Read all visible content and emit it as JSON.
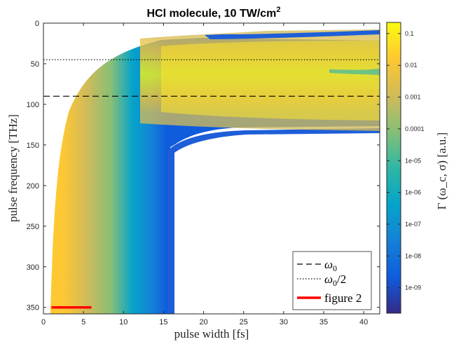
{
  "chart_data": {
    "type": "heatmap",
    "title_main": "HCl molecule, 10 TW/cm",
    "title_sup": "2",
    "xlabel": "pulse width [fs]",
    "ylabel": "pulse frequency [THz]",
    "colorbar_label": "Γ (ω_c, σ) [a.u.]",
    "xlim": [
      0,
      42
    ],
    "ylim": [
      0,
      358
    ],
    "y_reversed": true,
    "x_ticks": [
      0,
      5,
      10,
      15,
      20,
      25,
      30,
      35,
      40
    ],
    "x_tick_labels": [
      "0",
      "5",
      "10",
      "15",
      "20",
      "25",
      "30",
      "35",
      "40"
    ],
    "y_ticks": [
      0,
      50,
      100,
      150,
      200,
      250,
      300,
      350
    ],
    "y_tick_labels": [
      "0",
      "50",
      "100",
      "150",
      "200",
      "250",
      "300",
      "350"
    ],
    "colorbar_scale": "log",
    "colorbar_ticks": [
      0.1,
      0.01,
      0.001,
      0.0001,
      1e-05,
      1e-06,
      1e-07,
      1e-08,
      1e-09
    ],
    "colorbar_tick_labels": [
      "0.1",
      "0.01",
      "0.001",
      "0.0001",
      "1e-05",
      "1e-06",
      "1e-07",
      "1e-08",
      "1e-09"
    ],
    "colorbar_range_exp": [
      -9.8,
      -0.65
    ],
    "colormap": [
      "#352a87",
      "#0f5cdd",
      "#1481d6",
      "#06a4ca",
      "#2eb7a4",
      "#87bf77",
      "#d1bb59",
      "#fec832",
      "#f9fb0e"
    ],
    "reference_lines": [
      {
        "name": "ω0",
        "y": 90,
        "style": "dashed"
      },
      {
        "name": "ω0/2",
        "y": 45,
        "style": "dotted"
      }
    ],
    "highlight_segment": {
      "name": "figure 2",
      "x": [
        1,
        6
      ],
      "y": 350,
      "color": "#ff0000"
    },
    "legend": {
      "placement": "bottom-right",
      "entries": [
        {
          "base": "ω",
          "sub": "0",
          "tail": "",
          "style": "dashed"
        },
        {
          "base": "ω",
          "sub": "0",
          "tail": "/2",
          "style": "dotted"
        },
        {
          "base": "figure 2",
          "sub": "",
          "tail": "",
          "style": "red"
        }
      ]
    }
  }
}
